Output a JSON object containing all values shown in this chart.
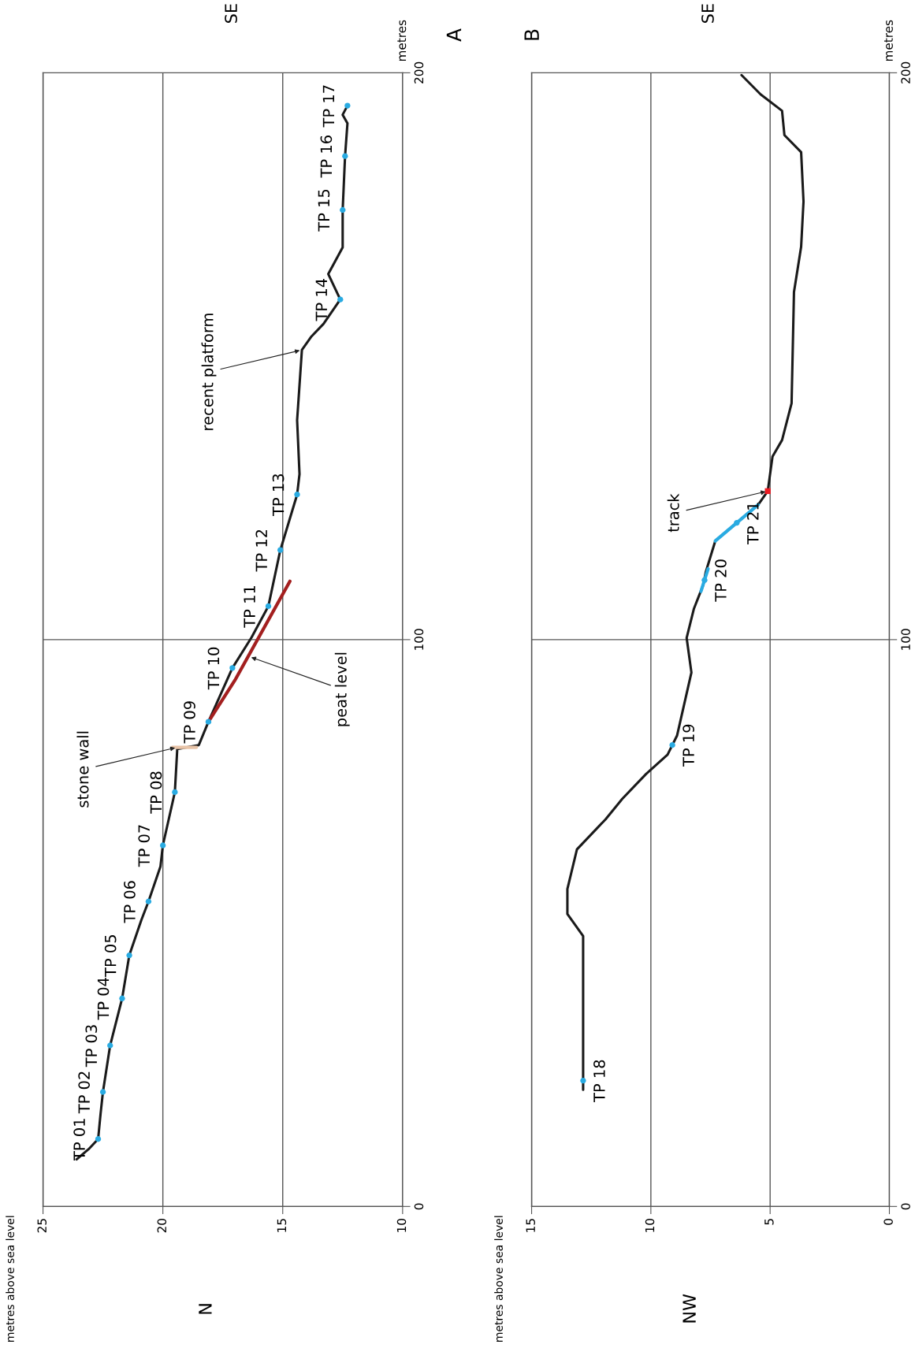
{
  "chart_data": [
    {
      "type": "line",
      "ylabel": "metres",
      "xlim": [
        25,
        10
      ],
      "xticks": [
        25,
        20,
        15,
        10
      ],
      "ylim": [
        0,
        200
      ],
      "yticks": [
        0,
        100,
        200
      ],
      "grid": true,
      "series": [
        {
          "color": "#1a1a1a",
          "values": [
            8.3,
            10.1,
            11.9,
            16.3,
            20.2,
            28.4,
            36.7,
            44.3,
            50.5,
            53.8,
            60.0,
            63.7,
            73.1,
            80.7,
            81.4,
            85.5,
            95.0,
            100.4,
            105.9,
            115.8,
            125.6,
            129.2,
            138.7,
            151.1,
            153.5,
            155.7,
            160.0,
            164.5,
            169.2,
            175.8,
            185.3,
            191.1,
            192.6,
            194.2
          ],
          "x": [
            23.6,
            23.1,
            22.7,
            22.6,
            22.5,
            22.2,
            21.7,
            21.4,
            20.9,
            20.6,
            20.1,
            20.0,
            19.5,
            19.4,
            18.5,
            18.1,
            17.1,
            16.3,
            15.6,
            15.1,
            14.4,
            14.3,
            14.4,
            14.2,
            13.8,
            13.3,
            12.6,
            13.1,
            12.5,
            12.5,
            12.4,
            12.3,
            12.5,
            12.3
          ]
        },
        {
          "color": "#a31f1f",
          "values": [
            85.5,
            92.8,
            110.3
          ],
          "x": [
            18.1,
            17.0,
            14.7
          ]
        },
        {
          "color": "#e8c4a8",
          "values": [
            81.0,
            81.0
          ],
          "x": [
            19.6,
            18.6
          ]
        },
        {
          "type": "scatter",
          "color": "#29abe2",
          "marker": "circle",
          "values": [
            11.9,
            20.2,
            28.4,
            36.7,
            44.3,
            53.8,
            63.7,
            73.1,
            85.5,
            95.0,
            105.9,
            115.8,
            125.6,
            160.0,
            175.8,
            185.3,
            194.2
          ],
          "x": [
            22.7,
            22.5,
            22.2,
            21.7,
            21.4,
            20.6,
            20.0,
            19.5,
            18.1,
            17.1,
            15.6,
            15.1,
            14.4,
            12.6,
            12.5,
            12.4,
            12.3
          ],
          "value_labels": [
            "TP 01",
            "TP 02",
            "TP 03",
            "TP 04",
            "TP 05",
            "TP 06",
            "TP 07",
            "TP 08",
            "TP 09",
            "TP 10",
            "TP 11",
            "TP 12",
            "TP 13",
            "TP 14",
            "TP 15",
            "TP 16",
            "TP 17"
          ]
        }
      ],
      "annotations": [
        "A",
        "N",
        "SE",
        "metres above sea level",
        {
          "text": "stone wall",
          "x": 19.4,
          "y": 81.0
        },
        {
          "text": "peat level",
          "x": 16.4,
          "y": 97
        },
        {
          "text": "recent platform",
          "x": 14.2,
          "y": 151.1
        }
      ]
    },
    {
      "type": "line",
      "ylabel": "metres",
      "xlim": [
        15,
        0
      ],
      "xticks": [
        15,
        10,
        5,
        0
      ],
      "ylim": [
        0,
        200
      ],
      "yticks": [
        0,
        100,
        200
      ],
      "grid": true,
      "series": [
        {
          "color": "#1a1a1a",
          "values": [
            20.6,
            47.7,
            51.6,
            56.0,
            63.0,
            68.3,
            71.9,
            76.3,
            79.7,
            83.1,
            94.2,
            100.3,
            105.4,
            109.7,
            111.9,
            117.4,
            123.8,
            126.2,
            132.3,
            135.2,
            141.7,
            161.3,
            169.3,
            177.3,
            186.0,
            189.0,
            193.3,
            196.2,
            199.6
          ],
          "x": [
            12.84,
            12.84,
            13.5,
            13.5,
            13.1,
            11.9,
            11.2,
            10.2,
            9.3,
            8.9,
            8.3,
            8.5,
            8.2,
            7.8,
            7.7,
            7.3,
            5.5,
            5.1,
            4.9,
            4.5,
            4.1,
            4.0,
            3.7,
            3.6,
            3.7,
            4.4,
            4.5,
            5.4,
            6.2
          ]
        },
        {
          "color": "#29abe2",
          "values": [
            117.4,
            123.8
          ],
          "x": [
            7.3,
            5.5
          ]
        },
        {
          "color": "#29abe2",
          "values": [
            108.5,
            112.5
          ],
          "x": [
            7.9,
            7.6
          ]
        },
        {
          "type": "scatter",
          "color": "#ed1c24",
          "marker": "square",
          "values": [
            126.2
          ],
          "x": [
            5.1
          ]
        },
        {
          "type": "scatter",
          "color": "#29abe2",
          "marker": "circle",
          "values": [
            22.2,
            81.4,
            110.5,
            120.6
          ],
          "x": [
            12.84,
            9.1,
            7.75,
            6.4
          ],
          "value_labels": [
            "TP 18",
            "TP 19",
            "TP 20",
            "TP 21"
          ]
        }
      ],
      "annotations": [
        "B",
        "NW",
        "SE",
        "metres above sea level",
        {
          "text": "track",
          "x": 5.1,
          "y": 126.2
        }
      ]
    }
  ]
}
